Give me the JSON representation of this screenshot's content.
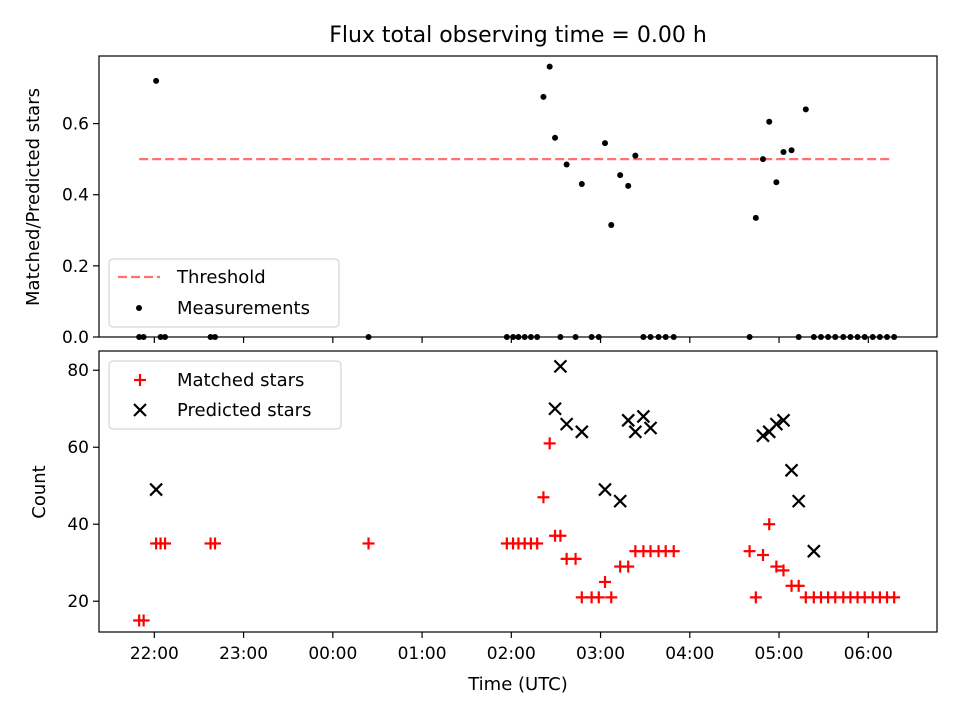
{
  "chart_data": [
    {
      "type": "scatter",
      "title": "Flux total observing time = 0.00 h",
      "ylabel": "Matched/Predicted stars",
      "ylim": [
        0,
        0.79
      ],
      "yticks": [
        0.0,
        0.2,
        0.4,
        0.6
      ],
      "ytick_labels": [
        "0.0",
        "0.2",
        "0.4",
        "0.6"
      ],
      "xlim": [
        -2.62,
        6.77
      ],
      "xticks": [
        -2,
        -1,
        0,
        1,
        2,
        3,
        4,
        5,
        6
      ],
      "legend": "lower-left",
      "threshold": {
        "name": "Threshold",
        "value": 0.5,
        "x_range": [
          -2.17,
          6.27
        ],
        "color": "#ff7070"
      },
      "series": [
        {
          "name": "Measurements",
          "color": "#000000",
          "marker": "dot",
          "x": [
            -2.17,
            -2.12,
            -1.98,
            -1.93,
            -1.88,
            -1.37,
            -1.32,
            0.4,
            1.95,
            2.02,
            2.08,
            2.15,
            2.22,
            2.29,
            2.36,
            2.43,
            2.49,
            2.55,
            2.62,
            2.72,
            2.79,
            2.9,
            2.98,
            3.05,
            3.12,
            3.22,
            3.31,
            3.39,
            3.48,
            3.56,
            3.65,
            3.73,
            3.82,
            4.67,
            4.74,
            4.82,
            4.89,
            4.97,
            5.05,
            5.14,
            5.22,
            5.3,
            5.39,
            5.47,
            5.55,
            5.63,
            5.72,
            5.8,
            5.88,
            5.96,
            6.05,
            6.13,
            6.21,
            6.29
          ],
          "y": [
            0,
            0,
            0.72,
            0,
            0,
            0,
            0,
            0,
            0,
            0,
            0,
            0,
            0,
            0,
            0.675,
            0.76,
            0.56,
            0,
            0.485,
            0,
            0.43,
            0,
            0,
            0.545,
            0.315,
            0.455,
            0.425,
            0.51,
            0,
            0,
            0,
            0,
            0,
            0,
            0.335,
            0.5,
            0.605,
            0.435,
            0.52,
            0.525,
            0,
            0.64,
            0,
            0,
            0,
            0,
            0,
            0,
            0,
            0,
            0,
            0,
            0,
            0
          ]
        }
      ]
    },
    {
      "type": "scatter",
      "ylabel": "Count",
      "xlabel": "Time (UTC)",
      "ylim": [
        12,
        85
      ],
      "yticks": [
        20,
        40,
        60,
        80
      ],
      "ytick_labels": [
        "20",
        "40",
        "60",
        "80"
      ],
      "xlim": [
        -2.62,
        6.77
      ],
      "xticks": [
        -2,
        -1,
        0,
        1,
        2,
        3,
        4,
        5,
        6
      ],
      "xtick_labels": [
        "22:00",
        "23:00",
        "00:00",
        "01:00",
        "02:00",
        "03:00",
        "04:00",
        "05:00",
        "06:00"
      ],
      "legend": "top-left",
      "series": [
        {
          "name": "Matched stars",
          "color": "#ff0000",
          "marker": "plus",
          "x": [
            -2.17,
            -2.12,
            -1.98,
            -1.93,
            -1.88,
            -1.37,
            -1.32,
            0.4,
            1.95,
            2.02,
            2.08,
            2.15,
            2.22,
            2.29,
            2.36,
            2.43,
            2.49,
            2.55,
            2.62,
            2.72,
            2.79,
            2.9,
            2.98,
            3.05,
            3.12,
            3.22,
            3.31,
            3.39,
            3.48,
            3.56,
            3.65,
            3.73,
            3.82,
            4.67,
            4.74,
            4.82,
            4.89,
            4.97,
            5.05,
            5.14,
            5.22,
            5.3,
            5.39,
            5.47,
            5.55,
            5.63,
            5.72,
            5.8,
            5.88,
            5.96,
            6.05,
            6.13,
            6.21,
            6.29
          ],
          "y": [
            15,
            15,
            35,
            35,
            35,
            35,
            35,
            35,
            35,
            35,
            35,
            35,
            35,
            35,
            47,
            61,
            37,
            37,
            31,
            31,
            21,
            21,
            21,
            25,
            21,
            29,
            29,
            33,
            33,
            33,
            33,
            33,
            33,
            33,
            21,
            32,
            40,
            29,
            28,
            24,
            24,
            21,
            21,
            21,
            21,
            21,
            21,
            21,
            21,
            21,
            21,
            21,
            21,
            21
          ]
        },
        {
          "name": "Predicted stars",
          "color": "#000000",
          "marker": "x",
          "x": [
            -1.98,
            2.49,
            2.55,
            2.62,
            2.79,
            3.05,
            3.22,
            3.31,
            3.39,
            3.48,
            3.56,
            4.82,
            4.89,
            4.97,
            5.05,
            5.14,
            5.22,
            5.39
          ],
          "y": [
            49,
            70,
            81,
            66,
            64,
            49,
            46,
            67,
            64,
            68,
            65,
            63,
            64,
            66,
            67,
            54,
            46,
            33
          ]
        }
      ]
    }
  ]
}
